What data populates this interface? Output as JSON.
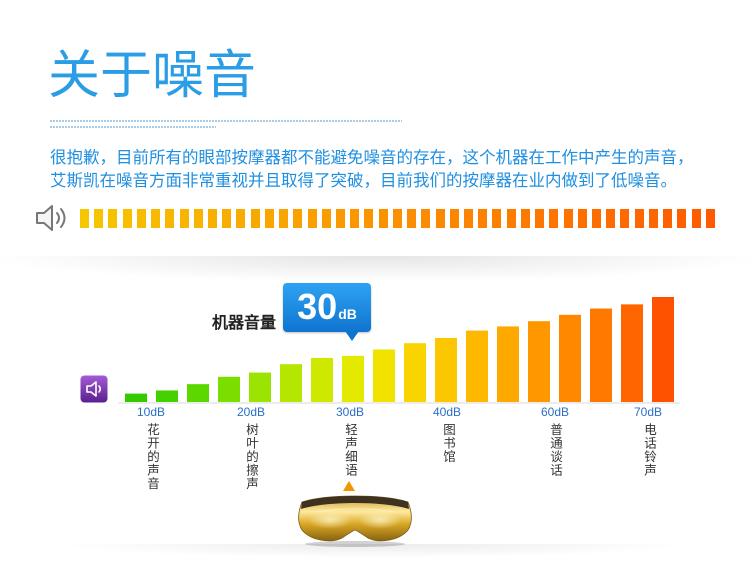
{
  "title": "关于噪音",
  "intro": {
    "lines": [
      "很抱歉，目前所有的眼部按摩器都不能避免噪音的存在，这个机器在工作中产生的声音，",
      "艾斯凯在噪音方面非常重视并且取得了突破，目前我们的按摩器在业内做到了低噪音。"
    ]
  },
  "icons": {
    "top_speaker": "speaker-icon",
    "chart_speaker": "speaker-icon",
    "marker": "triangle-up-icon",
    "product": "eye-massager-image"
  },
  "colors": {
    "title": "#2a9de6",
    "text": "#1f8fe0",
    "callout": "#1a86dc",
    "marker": "#f29600",
    "chart_icon": "#7a35b0",
    "meter_start": "#f6c600",
    "meter_end": "#ff5a00"
  },
  "chart_data": {
    "type": "bar",
    "callout": {
      "label": "机器音量",
      "value": "30",
      "unit": "dB"
    },
    "values": [
      0.08,
      0.11,
      0.17,
      0.24,
      0.28,
      0.36,
      0.42,
      0.44,
      0.5,
      0.56,
      0.61,
      0.68,
      0.72,
      0.77,
      0.83,
      0.89,
      0.93,
      1.0
    ],
    "bar_colors": [
      "#35c900",
      "#45d000",
      "#5cd800",
      "#7ade00",
      "#9be300",
      "#b5e600",
      "#cfe800",
      "#e3ea00",
      "#f2e200",
      "#f9d400",
      "#fcc600",
      "#ffb800",
      "#ffa800",
      "#ff9800",
      "#ff8800",
      "#ff7800",
      "#ff6600",
      "#ff5200"
    ],
    "ticks": [
      {
        "label": "10dB",
        "desc": "花开的声音"
      },
      {
        "label": "20dB",
        "desc": "树叶的擦声"
      },
      {
        "label": "30dB",
        "desc": "轻声细语"
      },
      {
        "label": "40dB",
        "desc": "图书馆"
      },
      {
        "label": "60dB",
        "desc": "普通谈话"
      },
      {
        "label": "70dB",
        "desc": "电话铃声"
      }
    ]
  }
}
